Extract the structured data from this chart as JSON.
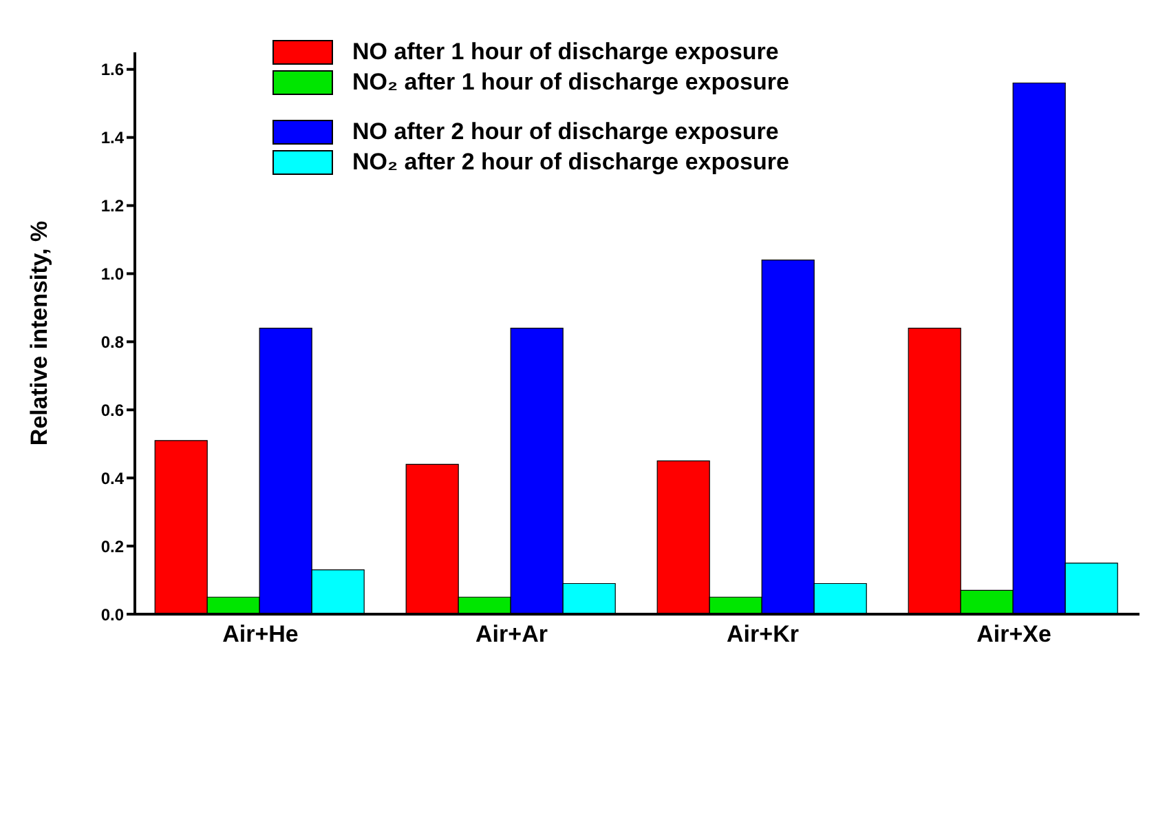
{
  "chart_data": {
    "type": "bar",
    "ylabel": "Relative intensity, %",
    "categories": [
      "Air+He",
      "Air+Ar",
      "Air+Kr",
      "Air+Xe"
    ],
    "series": [
      {
        "name": "NO after 1 hour of discharge exposure",
        "color": "#ff0000",
        "values": [
          0.51,
          0.44,
          0.45,
          0.84
        ]
      },
      {
        "name": "NO₂ after 1 hour of discharge exposure",
        "color": "#00e600",
        "values": [
          0.05,
          0.05,
          0.05,
          0.07
        ]
      },
      {
        "name": "NO after 2 hour of discharge exposure",
        "color": "#0000ff",
        "values": [
          0.84,
          0.84,
          1.04,
          1.56
        ]
      },
      {
        "name": "NO₂ after 2 hour of discharge exposure",
        "color": "#00ffff",
        "values": [
          0.13,
          0.09,
          0.09,
          0.15
        ]
      }
    ],
    "ylim": [
      0,
      1.65
    ],
    "yticks": [
      {
        "value": 0,
        "label": "0.0"
      },
      {
        "value": 0.2,
        "label": "0.2"
      },
      {
        "value": 0.4,
        "label": "0.4"
      },
      {
        "value": 0.6,
        "label": "0.6"
      },
      {
        "value": 0.8,
        "label": "0.8"
      },
      {
        "value": 1,
        "label": "1.0"
      },
      {
        "value": 1.2,
        "label": "1.2"
      },
      {
        "value": 1.4,
        "label": "1.4"
      },
      {
        "value": 1.6,
        "label": "1.6"
      }
    ],
    "legend": "top",
    "grid": false
  }
}
